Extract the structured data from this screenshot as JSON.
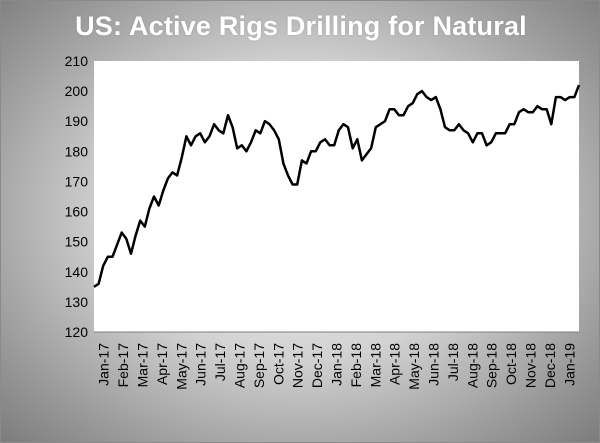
{
  "chart_data": {
    "type": "line",
    "title": "US: Active Rigs Drilling for Natural",
    "xlabel": "",
    "ylabel": "",
    "ylim": [
      120,
      210
    ],
    "yticks": [
      120,
      130,
      140,
      150,
      160,
      170,
      180,
      190,
      200,
      210
    ],
    "grid": false,
    "legend": "none",
    "line_color": "#000000",
    "x_tick_labels": [
      "Jan-17",
      "Feb-17",
      "Mar-17",
      "Apr-17",
      "May-17",
      "Jun-17",
      "Jul-17",
      "Aug-17",
      "Sep-17",
      "Oct-17",
      "Nov-17",
      "Dec-17",
      "Jan-18",
      "Feb-18",
      "Mar-18",
      "Apr-18",
      "May-18",
      "Jun-18",
      "Jul-18",
      "Aug-18",
      "Sep-18",
      "Oct-18",
      "Nov-18",
      "Dec-18",
      "Jan-19"
    ],
    "series": [
      {
        "values": [
          135,
          136,
          142,
          145,
          145,
          149,
          153,
          151,
          146,
          152,
          157,
          155,
          161,
          165,
          162,
          167,
          171,
          173,
          172,
          178,
          185,
          182,
          185,
          186,
          183,
          185,
          189,
          187,
          186,
          192,
          188,
          181,
          182,
          180,
          183,
          187,
          186,
          190,
          189,
          187,
          184,
          176,
          172,
          169,
          169,
          177,
          176,
          180,
          180,
          183,
          184,
          182,
          182,
          187,
          189,
          188,
          181,
          184,
          177,
          179,
          181,
          188,
          189,
          190,
          194,
          194,
          192,
          192,
          195,
          196,
          199,
          200,
          198,
          197,
          198,
          194,
          188,
          187,
          187,
          189,
          187,
          186,
          183,
          186,
          186,
          182,
          183,
          186,
          186,
          186,
          189,
          189,
          193,
          194,
          193,
          193,
          195,
          194,
          194,
          189,
          198,
          198,
          197,
          198,
          198,
          202
        ]
      }
    ]
  }
}
